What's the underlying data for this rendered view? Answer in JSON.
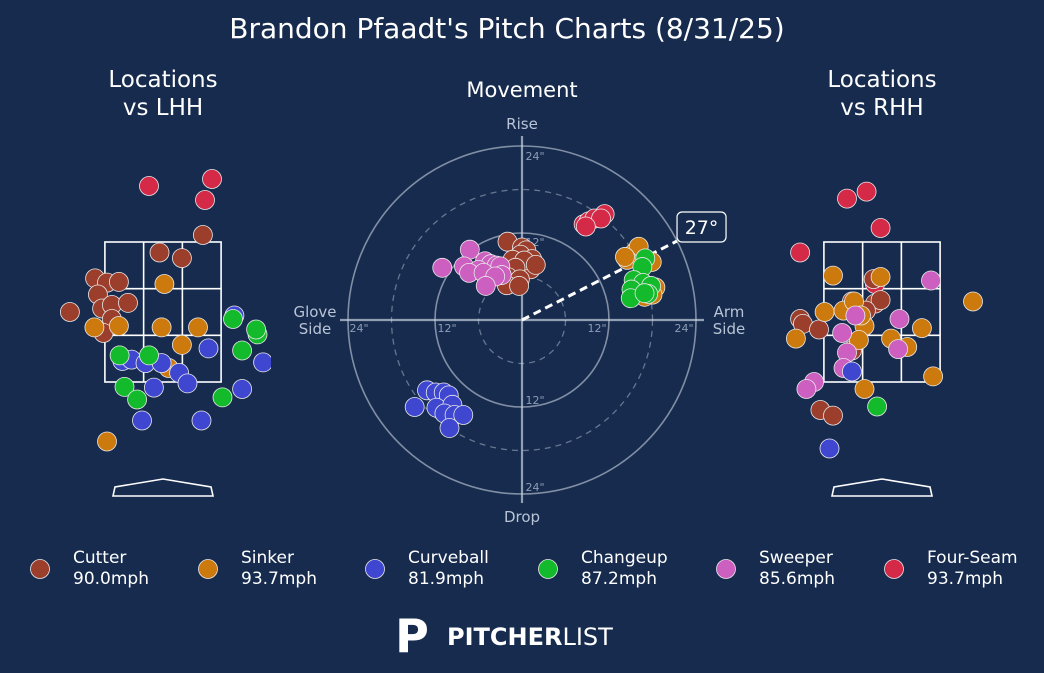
{
  "title": "Brandon Pfaadt's Pitch Charts (8/31/25)",
  "colors": {
    "background": "#162b4e",
    "Cutter": "#9b3f2c",
    "Sinker": "#cc7a0e",
    "Curveball": "#3f47d1",
    "Changeup": "#13bb2c",
    "Sweeper": "#cc5fbf",
    "Four-Seam": "#d42a48"
  },
  "chart_data": [
    {
      "type": "scatter",
      "title": "Locations\nvs LHH",
      "xlim": [
        -2.0,
        2.0
      ],
      "ylim": [
        0.0,
        5.0
      ],
      "zone": {
        "x": [
          -0.83,
          0.83
        ],
        "z": [
          1.5,
          3.5
        ]
      },
      "series": [
        {
          "name": "Four-Seam",
          "points": [
            [
              -0.2,
              4.3
            ],
            [
              0.7,
              4.4
            ],
            [
              0.6,
              4.1
            ]
          ]
        },
        {
          "name": "Cutter",
          "points": [
            [
              0.57,
              3.6
            ],
            [
              -0.05,
              3.35
            ],
            [
              0.27,
              3.27
            ],
            [
              -0.97,
              2.98
            ],
            [
              -0.8,
              2.92
            ],
            [
              -0.63,
              2.93
            ],
            [
              -0.93,
              2.75
            ],
            [
              -1.33,
              2.5
            ],
            [
              -0.87,
              2.55
            ],
            [
              -0.73,
              2.6
            ],
            [
              -0.5,
              2.63
            ],
            [
              -0.73,
              2.4
            ],
            [
              -0.85,
              2.2
            ]
          ]
        },
        {
          "name": "Sinker",
          "points": [
            [
              0.02,
              2.9
            ],
            [
              -0.63,
              2.3
            ],
            [
              -0.98,
              2.28
            ],
            [
              -0.02,
              2.28
            ],
            [
              0.5,
              2.28
            ],
            [
              0.27,
              2.03
            ],
            [
              0.08,
              1.7
            ],
            [
              -0.8,
              0.65
            ]
          ]
        },
        {
          "name": "Curveball",
          "points": [
            [
              1.02,
              2.45
            ],
            [
              0.65,
              1.98
            ],
            [
              -0.58,
              1.8
            ],
            [
              -0.45,
              1.82
            ],
            [
              -0.25,
              1.77
            ],
            [
              -0.02,
              1.77
            ],
            [
              0.23,
              1.63
            ],
            [
              1.43,
              1.78
            ],
            [
              0.35,
              1.48
            ],
            [
              -0.13,
              1.42
            ],
            [
              1.13,
              1.4
            ],
            [
              -0.3,
              0.95
            ],
            [
              0.55,
              0.95
            ]
          ]
        },
        {
          "name": "Changeup",
          "points": [
            [
              1.0,
              2.4
            ],
            [
              1.35,
              2.18
            ],
            [
              -0.62,
              1.88
            ],
            [
              -0.2,
              1.88
            ],
            [
              1.13,
              1.95
            ],
            [
              1.33,
              2.25
            ],
            [
              -0.55,
              1.43
            ],
            [
              -0.37,
              1.25
            ],
            [
              0.85,
              1.28
            ]
          ]
        }
      ]
    },
    {
      "type": "scatter",
      "title": "Movement",
      "xlabel": "Glove\nSide",
      "xlabel_right": "Arm\nSide",
      "ylabel_top": "Rise",
      "ylabel_bottom": "Drop",
      "rings_in": [
        6,
        12,
        18,
        24
      ],
      "ring_labels": [
        "24\"",
        "12\"",
        "12\"",
        "24\""
      ],
      "arm_angle_label": "27°",
      "arm_angle_deg": 27,
      "series": [
        {
          "name": "Four-Seam",
          "points": [
            [
              8.5,
              13.2
            ],
            [
              9.2,
              13.6
            ],
            [
              10,
              14
            ],
            [
              11.4,
              14.6
            ],
            [
              10.9,
              14
            ],
            [
              8.8,
              12.9
            ]
          ]
        },
        {
          "name": "Sinker",
          "points": [
            [
              15.5,
              9.3
            ],
            [
              16.1,
              10.1
            ],
            [
              14.5,
              8.3
            ],
            [
              17.9,
              8.0
            ],
            [
              18.4,
              4.5
            ],
            [
              15.9,
              4.2
            ],
            [
              17.4,
              4.7
            ],
            [
              18.0,
              3.5
            ],
            [
              16.9,
              3.2
            ],
            [
              14.2,
              8.7
            ]
          ]
        },
        {
          "name": "Changeup",
          "points": [
            [
              17,
              8.5
            ],
            [
              16.6,
              7.3
            ],
            [
              15.4,
              5.5
            ],
            [
              16.7,
              5.1
            ],
            [
              17.8,
              4.7
            ],
            [
              15.1,
              4.2
            ],
            [
              15.0,
              3.0
            ],
            [
              17.4,
              3.6
            ],
            [
              16.9,
              3.7
            ]
          ]
        },
        {
          "name": "Cutter",
          "points": [
            [
              -2.0,
              10.8
            ],
            [
              0,
              10.0
            ],
            [
              0.6,
              9.6
            ],
            [
              -0.2,
              9.0
            ],
            [
              1.4,
              8.4
            ],
            [
              1.2,
              7.0
            ],
            [
              -1.3,
              8.3
            ],
            [
              0.3,
              8.2
            ],
            [
              -0.9,
              7.2
            ],
            [
              -1.9,
              5.9
            ],
            [
              -0.3,
              5.6
            ],
            [
              1.9,
              7.6
            ],
            [
              -2.1,
              4.8
            ],
            [
              -0.4,
              4.7
            ]
          ]
        },
        {
          "name": "Sweeper",
          "points": [
            [
              -7.2,
              9.7
            ],
            [
              -8.0,
              7.4
            ],
            [
              -5.1,
              8.1
            ],
            [
              -4.3,
              7.7
            ],
            [
              -3.5,
              7.5
            ],
            [
              -3.0,
              7.4
            ],
            [
              -6.0,
              6.9
            ],
            [
              -11.0,
              7.2
            ],
            [
              -7.3,
              6.5
            ],
            [
              -5.3,
              6.5
            ],
            [
              -2.8,
              6.2
            ],
            [
              -3.7,
              6.0
            ],
            [
              -5.0,
              4.7
            ]
          ]
        },
        {
          "name": "Curveball",
          "points": [
            [
              -13.1,
              -9.7
            ],
            [
              -11.9,
              -10.0
            ],
            [
              -10.8,
              -10.0
            ],
            [
              -10.1,
              -10.4
            ],
            [
              -14.8,
              -12.0
            ],
            [
              -11.8,
              -12.1
            ],
            [
              -9.6,
              -11.7
            ],
            [
              -10.7,
              -12.9
            ],
            [
              -9.3,
              -13.1
            ],
            [
              -8.1,
              -13.1
            ],
            [
              -10.0,
              -14.9
            ]
          ]
        }
      ]
    },
    {
      "type": "scatter",
      "title": "Locations\nvs RHH",
      "xlim": [
        -2.0,
        2.0
      ],
      "ylim": [
        0.0,
        5.0
      ],
      "zone": {
        "x": [
          -0.83,
          0.83
        ],
        "z": [
          1.5,
          3.5
        ]
      },
      "series": [
        {
          "name": "Four-Seam",
          "points": [
            [
              -0.5,
              4.12
            ],
            [
              -0.22,
              4.22
            ],
            [
              -0.02,
              3.7
            ],
            [
              -1.17,
              3.35
            ],
            [
              -0.1,
              2.9
            ]
          ]
        },
        {
          "name": "Cutter",
          "points": [
            [
              -0.12,
              2.97
            ],
            [
              -0.43,
              2.65
            ],
            [
              -0.1,
              2.62
            ],
            [
              -0.02,
              2.67
            ],
            [
              -0.23,
              2.52
            ],
            [
              -1.17,
              2.4
            ],
            [
              -1.13,
              2.33
            ],
            [
              -0.9,
              2.25
            ],
            [
              -0.43,
              1.95
            ],
            [
              -0.88,
              1.1
            ],
            [
              -0.7,
              1.02
            ]
          ]
        },
        {
          "name": "Sinker",
          "points": [
            [
              -0.7,
              3.02
            ],
            [
              -0.02,
              3.0
            ],
            [
              -0.82,
              2.5
            ],
            [
              -0.55,
              2.52
            ],
            [
              -0.4,
              2.65
            ],
            [
              -0.25,
              2.3
            ],
            [
              -0.3,
              2.45
            ],
            [
              -0.33,
              2.1
            ],
            [
              0.13,
              2.12
            ],
            [
              0.36,
              2.0
            ],
            [
              0.57,
              2.27
            ],
            [
              1.3,
              2.65
            ],
            [
              -1.23,
              2.12
            ],
            [
              0.73,
              1.58
            ],
            [
              -0.25,
              1.4
            ]
          ]
        },
        {
          "name": "Sweeper",
          "points": [
            [
              0.7,
              2.95
            ],
            [
              -0.57,
              2.2
            ],
            [
              -0.5,
              1.92
            ],
            [
              -0.55,
              1.7
            ],
            [
              0.25,
              2.4
            ],
            [
              0.23,
              1.97
            ],
            [
              -0.38,
              2.45
            ],
            [
              -0.97,
              1.5
            ],
            [
              -1.08,
              1.4
            ]
          ]
        },
        {
          "name": "Curveball",
          "points": [
            [
              -0.43,
              1.65
            ],
            [
              -0.75,
              0.55
            ]
          ]
        },
        {
          "name": "Changeup",
          "points": [
            [
              -0.07,
              1.15
            ]
          ]
        }
      ]
    }
  ],
  "legend": [
    {
      "name": "Cutter",
      "speed": "90.0mph"
    },
    {
      "name": "Sinker",
      "speed": "93.7mph"
    },
    {
      "name": "Curveball",
      "speed": "81.9mph"
    },
    {
      "name": "Changeup",
      "speed": "87.2mph"
    },
    {
      "name": "Sweeper",
      "speed": "85.6mph"
    },
    {
      "name": "Four-Seam",
      "speed": "93.7mph"
    }
  ],
  "brand": {
    "bold": "PITCHER",
    "light": "LIST",
    "logo_letter": "P"
  }
}
